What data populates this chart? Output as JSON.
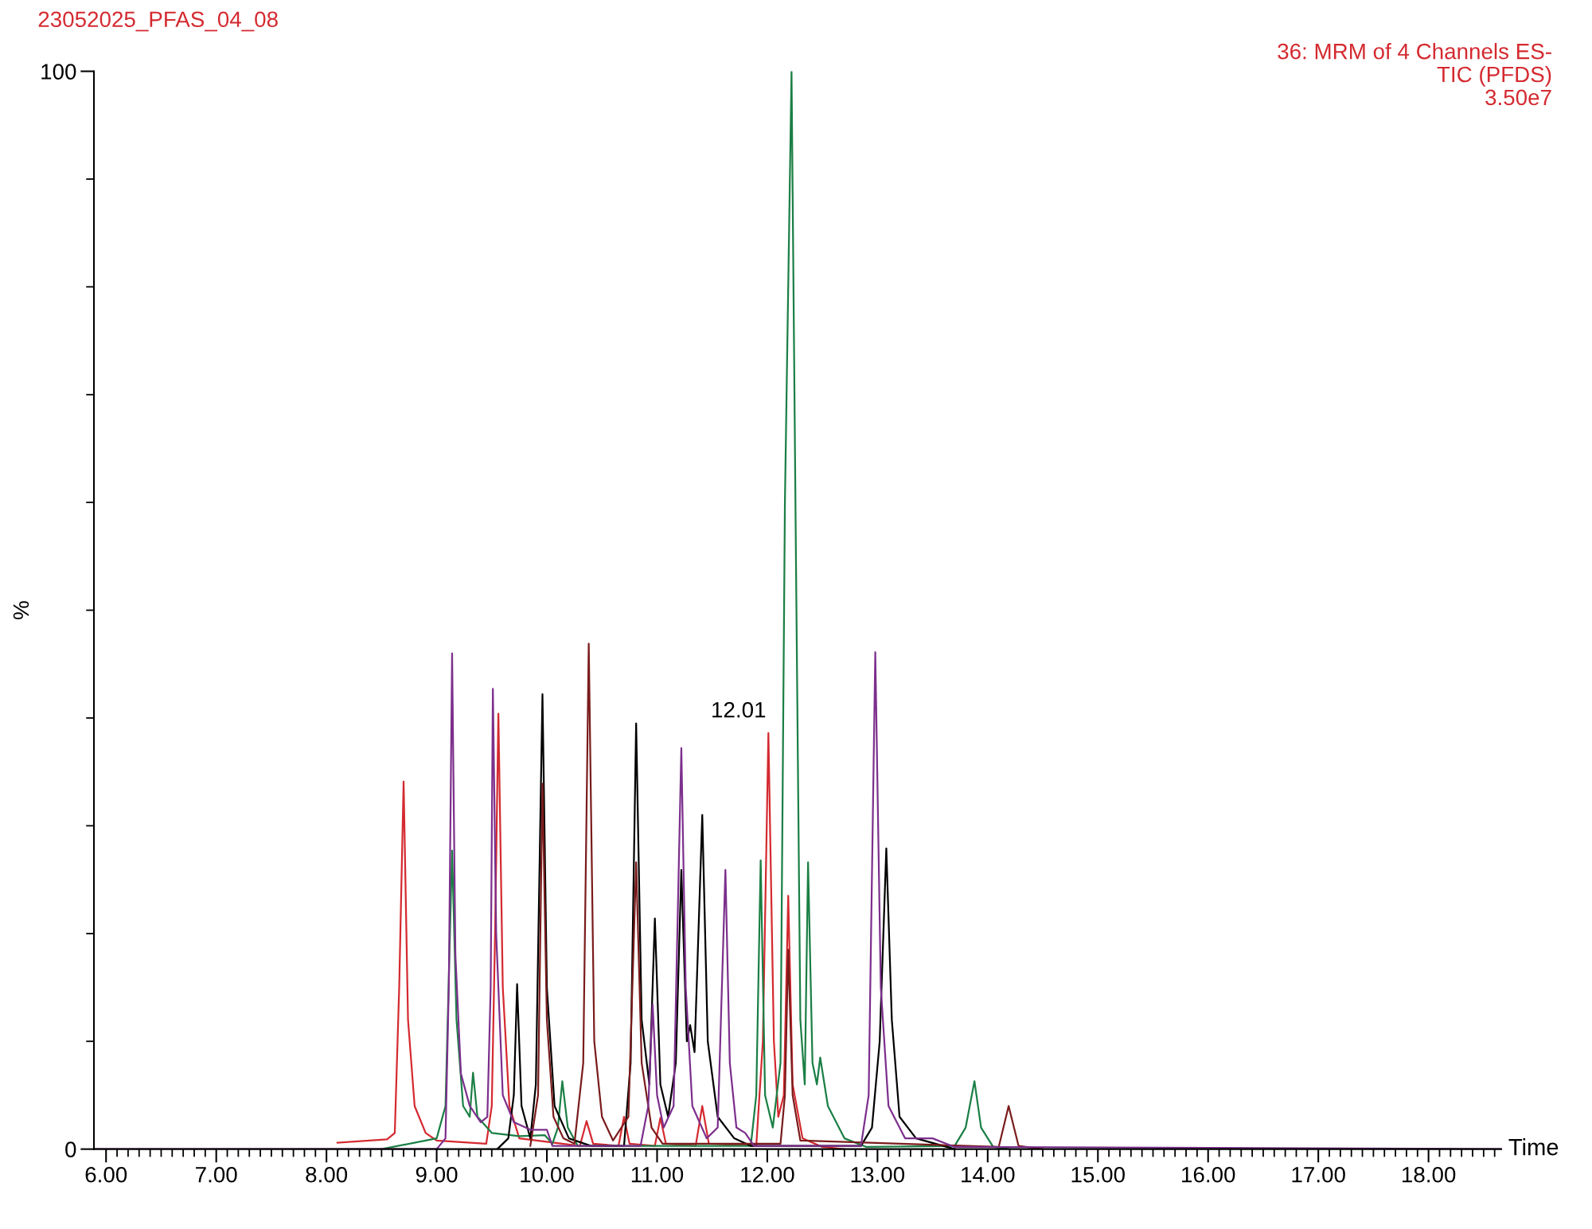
{
  "chart_data": {
    "type": "line",
    "title": "23052025_PFAS_04_08",
    "xlabel": "Time",
    "ylabel": "%",
    "xlim": [
      5.89,
      18.66
    ],
    "ylim": [
      0,
      100
    ],
    "xticks": [
      {
        "value": 6,
        "label": "6.00"
      },
      {
        "value": 7,
        "label": "7.00"
      },
      {
        "value": 8,
        "label": "8.00"
      },
      {
        "value": 9,
        "label": "9.00"
      },
      {
        "value": 10,
        "label": "10.00"
      },
      {
        "value": 11,
        "label": "11.00"
      },
      {
        "value": 12,
        "label": "12.00"
      },
      {
        "value": 13,
        "label": "13.00"
      },
      {
        "value": 14,
        "label": "14.00"
      },
      {
        "value": 15,
        "label": "15.00"
      },
      {
        "value": 16,
        "label": "16.00"
      },
      {
        "value": 17,
        "label": "17.00"
      },
      {
        "value": 18,
        "label": "18.00"
      },
      {
        "value": 6.1,
        "label": null
      },
      {
        "value": 6.2,
        "label": null
      },
      {
        "value": 6.3,
        "label": null
      },
      {
        "value": 6.4,
        "label": null
      },
      {
        "value": 6.5,
        "label": null
      },
      {
        "value": 6.6,
        "label": null
      },
      {
        "value": 6.7,
        "label": null
      },
      {
        "value": 6.8,
        "label": null
      },
      {
        "value": 6.9,
        "label": null
      },
      {
        "value": 7.1,
        "label": null
      },
      {
        "value": 7.2,
        "label": null
      },
      {
        "value": 7.3,
        "label": null
      },
      {
        "value": 7.4,
        "label": null
      },
      {
        "value": 7.5,
        "label": null
      },
      {
        "value": 7.6,
        "label": null
      },
      {
        "value": 7.7,
        "label": null
      },
      {
        "value": 7.8,
        "label": null
      },
      {
        "value": 7.9,
        "label": null
      },
      {
        "value": 8.1,
        "label": null
      },
      {
        "value": 8.2,
        "label": null
      },
      {
        "value": 8.3,
        "label": null
      },
      {
        "value": 8.4,
        "label": null
      },
      {
        "value": 8.5,
        "label": null
      },
      {
        "value": 8.6,
        "label": null
      },
      {
        "value": 8.7,
        "label": null
      },
      {
        "value": 8.8,
        "label": null
      },
      {
        "value": 8.9,
        "label": null
      },
      {
        "value": 9.1,
        "label": null
      },
      {
        "value": 9.2,
        "label": null
      },
      {
        "value": 9.3,
        "label": null
      },
      {
        "value": 9.4,
        "label": null
      },
      {
        "value": 9.5,
        "label": null
      },
      {
        "value": 9.6,
        "label": null
      },
      {
        "value": 9.7,
        "label": null
      },
      {
        "value": 9.8,
        "label": null
      },
      {
        "value": 9.9,
        "label": null
      },
      {
        "value": 10.1,
        "label": null
      },
      {
        "value": 10.2,
        "label": null
      },
      {
        "value": 10.3,
        "label": null
      },
      {
        "value": 10.4,
        "label": null
      },
      {
        "value": 10.5,
        "label": null
      },
      {
        "value": 10.6,
        "label": null
      },
      {
        "value": 10.7,
        "label": null
      },
      {
        "value": 10.8,
        "label": null
      },
      {
        "value": 10.9,
        "label": null
      },
      {
        "value": 11.1,
        "label": null
      },
      {
        "value": 11.2,
        "label": null
      },
      {
        "value": 11.3,
        "label": null
      },
      {
        "value": 11.4,
        "label": null
      },
      {
        "value": 11.5,
        "label": null
      },
      {
        "value": 11.6,
        "label": null
      },
      {
        "value": 11.7,
        "label": null
      },
      {
        "value": 11.8,
        "label": null
      },
      {
        "value": 11.9,
        "label": null
      },
      {
        "value": 12.1,
        "label": null
      },
      {
        "value": 12.2,
        "label": null
      },
      {
        "value": 12.3,
        "label": null
      },
      {
        "value": 12.4,
        "label": null
      },
      {
        "value": 12.5,
        "label": null
      },
      {
        "value": 12.6,
        "label": null
      },
      {
        "value": 12.7,
        "label": null
      },
      {
        "value": 12.8,
        "label": null
      },
      {
        "value": 12.9,
        "label": null
      },
      {
        "value": 13.1,
        "label": null
      },
      {
        "value": 13.2,
        "label": null
      },
      {
        "value": 13.3,
        "label": null
      },
      {
        "value": 13.4,
        "label": null
      },
      {
        "value": 13.5,
        "label": null
      },
      {
        "value": 13.6,
        "label": null
      },
      {
        "value": 13.7,
        "label": null
      },
      {
        "value": 13.8,
        "label": null
      },
      {
        "value": 13.9,
        "label": null
      },
      {
        "value": 14.1,
        "label": null
      },
      {
        "value": 14.2,
        "label": null
      },
      {
        "value": 14.3,
        "label": null
      },
      {
        "value": 14.4,
        "label": null
      },
      {
        "value": 14.5,
        "label": null
      },
      {
        "value": 14.6,
        "label": null
      },
      {
        "value": 14.7,
        "label": null
      },
      {
        "value": 14.8,
        "label": null
      },
      {
        "value": 14.9,
        "label": null
      },
      {
        "value": 15.1,
        "label": null
      },
      {
        "value": 15.2,
        "label": null
      },
      {
        "value": 15.3,
        "label": null
      },
      {
        "value": 15.4,
        "label": null
      },
      {
        "value": 15.5,
        "label": null
      },
      {
        "value": 15.6,
        "label": null
      },
      {
        "value": 15.7,
        "label": null
      },
      {
        "value": 15.8,
        "label": null
      },
      {
        "value": 15.9,
        "label": null
      },
      {
        "value": 16.1,
        "label": null
      },
      {
        "value": 16.2,
        "label": null
      },
      {
        "value": 16.3,
        "label": null
      },
      {
        "value": 16.4,
        "label": null
      },
      {
        "value": 16.5,
        "label": null
      },
      {
        "value": 16.6,
        "label": null
      },
      {
        "value": 16.7,
        "label": null
      },
      {
        "value": 16.8,
        "label": null
      },
      {
        "value": 16.9,
        "label": null
      },
      {
        "value": 17.1,
        "label": null
      },
      {
        "value": 17.2,
        "label": null
      },
      {
        "value": 17.3,
        "label": null
      },
      {
        "value": 17.4,
        "label": null
      },
      {
        "value": 17.5,
        "label": null
      },
      {
        "value": 17.6,
        "label": null
      },
      {
        "value": 17.7,
        "label": null
      },
      {
        "value": 17.8,
        "label": null
      },
      {
        "value": 17.9,
        "label": null
      },
      {
        "value": 18.1,
        "label": null
      },
      {
        "value": 18.2,
        "label": null
      },
      {
        "value": 18.3,
        "label": null
      },
      {
        "value": 18.4,
        "label": null
      },
      {
        "value": 18.5,
        "label": null
      },
      {
        "value": 18.6,
        "label": null
      }
    ],
    "yticks": [
      0,
      100,
      {
        "value": 10,
        "label": null
      },
      {
        "value": 20,
        "label": null
      },
      {
        "value": 30,
        "label": null
      },
      {
        "value": 40,
        "label": null
      },
      {
        "value": 50,
        "label": null
      },
      {
        "value": 60,
        "label": null
      },
      {
        "value": 70,
        "label": null
      },
      {
        "value": 80,
        "label": null
      },
      {
        "value": 90,
        "label": null
      }
    ],
    "grid": false,
    "legend": false,
    "marker": "none",
    "line_style": "solid",
    "annotations": [
      "36: MRM of 4 Channels ES-\nTIC (PFDS)\n3.50e7",
      {
        "text": "12.01",
        "x": 12.01,
        "y": 38.6
      }
    ],
    "series": [
      {
        "color": "#d42a30",
        "x": [
          8.1,
          8.55,
          8.62,
          8.66,
          8.7,
          8.74,
          8.8,
          8.9,
          9.0,
          9.45,
          9.5,
          9.53,
          9.56,
          9.6,
          9.66,
          9.75,
          10.3,
          10.36,
          10.42,
          10.65,
          10.7,
          10.75,
          10.98,
          11.03,
          11.08,
          11.35,
          11.41,
          11.47,
          11.9,
          11.96,
          12.01,
          12.06,
          12.1,
          12.15,
          12.19,
          12.23,
          12.32,
          12.5,
          12.7
        ],
        "values": [
          0.6,
          0.9,
          1.5,
          15,
          34.1,
          12,
          4,
          1.5,
          0.8,
          0.5,
          4,
          20,
          40.4,
          15,
          4,
          1,
          0.3,
          2.6,
          0.5,
          0.3,
          3.0,
          0.5,
          0.3,
          2.9,
          0.5,
          0.3,
          4.0,
          0.5,
          0.3,
          10,
          38.6,
          10,
          3,
          5,
          23.5,
          6,
          1,
          0.2,
          0
        ]
      },
      {
        "color": "#1b7f45",
        "x": [
          8.5,
          9.0,
          9.08,
          9.14,
          9.18,
          9.24,
          9.3,
          9.33,
          9.37,
          9.5,
          9.75,
          9.98,
          10.05,
          10.1,
          10.14,
          10.19,
          10.28,
          11.85,
          11.9,
          11.94,
          11.98,
          12.05,
          12.12,
          12.16,
          12.22,
          12.26,
          12.3,
          12.34,
          12.37,
          12.41,
          12.45,
          12.48,
          12.55,
          12.7,
          12.9,
          13.7,
          13.8,
          13.88,
          13.94,
          14.05,
          14.2
        ],
        "values": [
          0,
          1,
          4,
          27.7,
          12,
          4,
          3,
          7.1,
          3,
          1.5,
          1.2,
          1.3,
          0.5,
          2,
          6.3,
          2,
          0.3,
          0.3,
          5,
          26.8,
          5,
          2,
          8,
          60,
          100,
          55,
          12,
          6,
          26.6,
          8,
          6,
          8.5,
          4,
          1,
          0.2,
          0.3,
          2,
          6.3,
          2,
          0.2,
          0
        ]
      },
      {
        "color": "#000000",
        "x": [
          9.55,
          9.65,
          9.7,
          9.73,
          9.77,
          9.85,
          9.9,
          9.96,
          10.0,
          10.07,
          10.2,
          10.4,
          10.7,
          10.76,
          10.81,
          10.86,
          10.93,
          10.98,
          11.03,
          11.1,
          11.17,
          11.22,
          11.27,
          11.3,
          11.34,
          11.41,
          11.46,
          11.55,
          11.7,
          11.85,
          12.85,
          12.95,
          13.02,
          13.08,
          13.13,
          13.2,
          13.35,
          13.7
        ],
        "values": [
          0,
          1,
          5,
          15.3,
          4,
          1,
          6,
          42.2,
          15,
          4,
          1,
          0.3,
          0.3,
          8,
          39.5,
          12,
          6,
          21.4,
          6,
          3,
          8,
          25.9,
          10,
          11.5,
          9,
          31.0,
          10,
          3,
          1,
          0.3,
          0.3,
          2,
          10,
          27.9,
          12,
          3,
          1,
          0
        ]
      },
      {
        "color": "#7a1c1c",
        "x": [
          9.85,
          9.92,
          9.96,
          10.0,
          10.06,
          10.15,
          10.25,
          10.33,
          10.38,
          10.43,
          10.5,
          10.6,
          10.74,
          10.81,
          10.86,
          10.95,
          11.05,
          12.12,
          12.16,
          12.19,
          12.23,
          12.3,
          14.1,
          14.19,
          14.28,
          14.5
        ],
        "values": [
          0.3,
          5,
          33.9,
          12,
          3,
          1,
          0.5,
          8,
          46.9,
          10,
          3,
          0.8,
          3,
          26.6,
          8,
          2,
          0.5,
          0.5,
          5,
          18.5,
          5,
          0.8,
          0.2,
          4.0,
          0.3,
          0
        ]
      },
      {
        "color": "#7c2f8c",
        "x": [
          5.89,
          9.0,
          9.08,
          9.11,
          9.14,
          9.17,
          9.22,
          9.3,
          9.4,
          9.46,
          9.49,
          9.51,
          9.54,
          9.6,
          9.7,
          9.85,
          10.0,
          10.05,
          10.85,
          10.92,
          10.96,
          11.0,
          11.06,
          11.15,
          11.22,
          11.26,
          11.32,
          11.45,
          11.55,
          11.62,
          11.66,
          11.72,
          11.8,
          11.88,
          12.85,
          12.92,
          12.98,
          13.03,
          13.1,
          13.25,
          13.5,
          13.7,
          18.66
        ],
        "values": [
          0,
          0,
          1,
          15,
          46.0,
          18,
          7,
          4,
          2.5,
          3,
          15,
          42.7,
          20,
          5,
          2.5,
          1.8,
          1.8,
          0.3,
          0.3,
          4,
          13.4,
          5,
          2,
          4,
          37.2,
          15,
          4,
          1,
          2,
          25.9,
          8,
          2,
          1.5,
          0.3,
          0.3,
          5,
          46.1,
          15,
          4,
          1,
          1.0,
          0.2,
          0
        ]
      }
    ]
  }
}
